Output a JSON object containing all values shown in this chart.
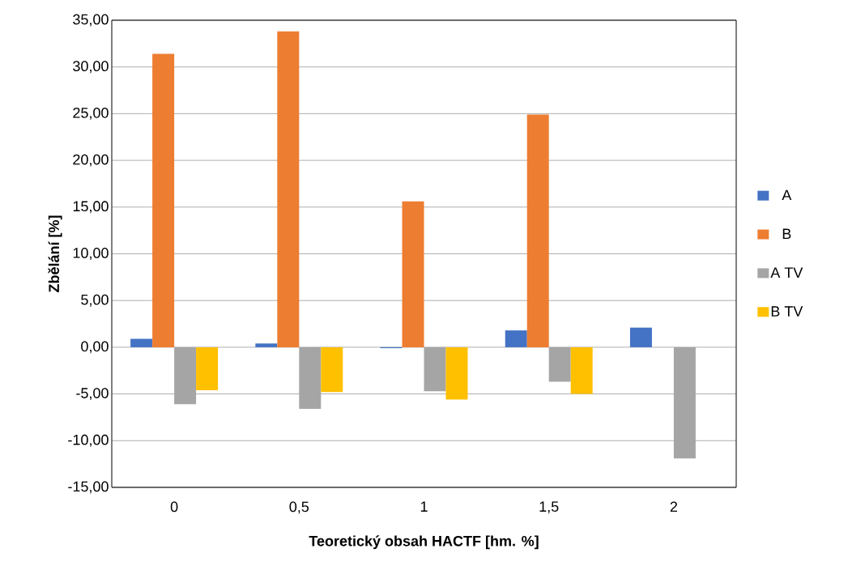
{
  "chart_data": {
    "type": "bar",
    "xlabel": "Teoretický obsah HACTF [hm. %]",
    "ylabel": "Zbělání [%]",
    "categories": [
      "0",
      "0,5",
      "1",
      "1,5",
      "2"
    ],
    "series": [
      {
        "name": "A",
        "color": "#4472c4",
        "values": [
          0.9,
          0.4,
          -0.1,
          1.8,
          2.1
        ]
      },
      {
        "name": "B",
        "color": "#ed7d31",
        "values": [
          31.4,
          33.8,
          15.6,
          24.9,
          null
        ]
      },
      {
        "name": "A TV",
        "color": "#a5a5a5",
        "values": [
          -6.1,
          -6.6,
          -4.7,
          -3.7,
          -11.9
        ]
      },
      {
        "name": "B TV",
        "color": "#ffc000",
        "values": [
          -4.6,
          -4.8,
          -5.6,
          -5.0,
          null
        ]
      }
    ],
    "ylim": [
      -15,
      35
    ],
    "yticks": [
      {
        "value": -15,
        "label": "-15,00"
      },
      {
        "value": -10,
        "label": "-10,00"
      },
      {
        "value": -5,
        "label": "-5,00"
      },
      {
        "value": 0,
        "label": "0,00"
      },
      {
        "value": 5,
        "label": "5,00"
      },
      {
        "value": 10,
        "label": "10,00"
      },
      {
        "value": 15,
        "label": "15,00"
      },
      {
        "value": 20,
        "label": "20,00"
      },
      {
        "value": 25,
        "label": "25,00"
      },
      {
        "value": 30,
        "label": "30,00"
      },
      {
        "value": 35,
        "label": "35,00"
      }
    ],
    "grid": "y",
    "legend": "right"
  }
}
